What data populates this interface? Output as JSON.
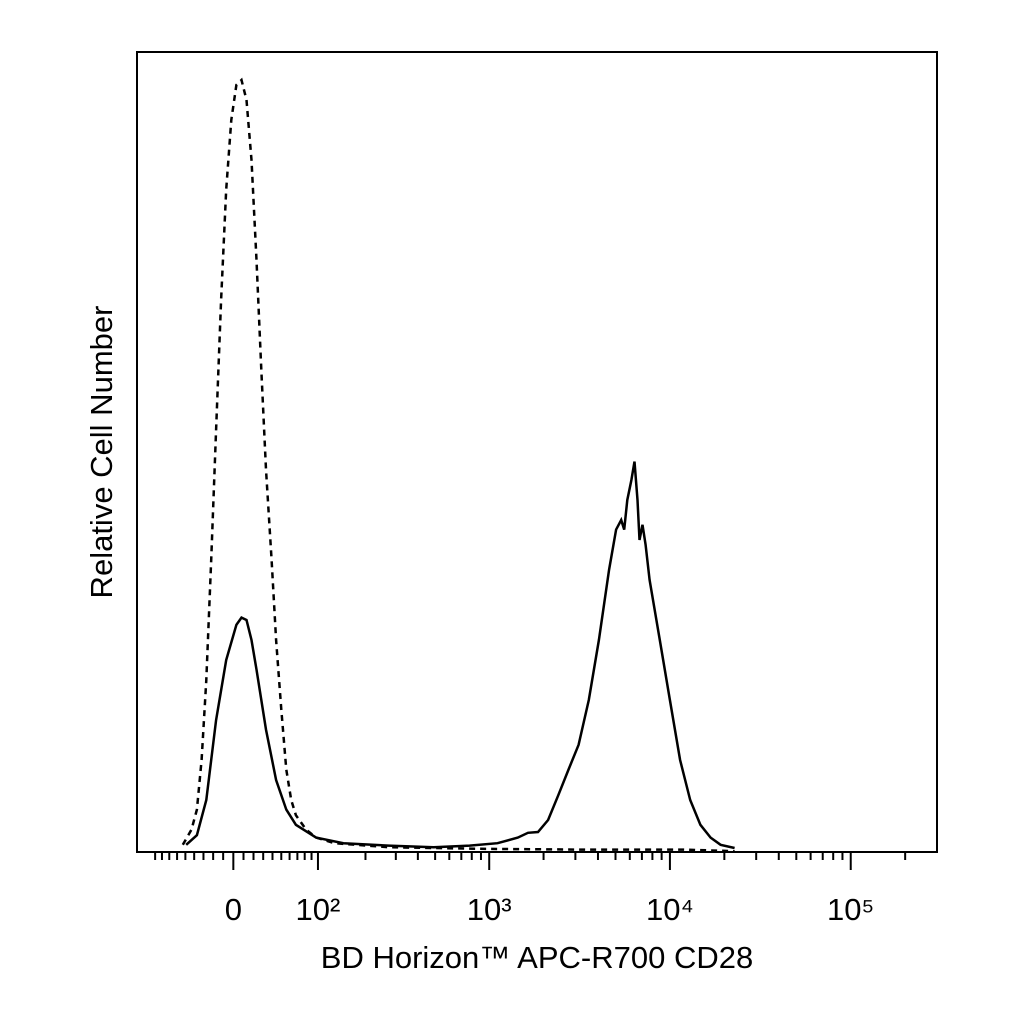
{
  "chart_data": {
    "type": "line",
    "x_label": "BD Horizon™ APC-R700 CD28",
    "y_label": "Relative Cell Number",
    "x_scale": "biexponential",
    "xlim": [
      -120,
      300000
    ],
    "ylim": [
      0,
      100
    ],
    "xticks": [
      {
        "value": 0,
        "label": "0"
      },
      {
        "value": 100,
        "label": "10²"
      },
      {
        "value": 1000,
        "label": "10³"
      },
      {
        "value": 10000,
        "label": "10⁴"
      },
      {
        "value": 100000,
        "label": "10⁵"
      }
    ],
    "xminor_ticks": [
      -90,
      -80,
      -70,
      -60,
      -50,
      -40,
      -30,
      -20,
      -10,
      10,
      20,
      30,
      40,
      50,
      60,
      70,
      80,
      90,
      200,
      300,
      400,
      500,
      600,
      700,
      800,
      900,
      2000,
      3000,
      4000,
      5000,
      6000,
      7000,
      8000,
      9000,
      20000,
      30000,
      40000,
      50000,
      60000,
      70000,
      80000,
      90000,
      200000
    ],
    "series": [
      {
        "color": "#000000",
        "line_style": "dashed",
        "x": [
          -53,
          -43,
          -37,
          -32,
          -27,
          -22,
          -17,
          -12,
          -7,
          -2,
          3,
          8,
          13,
          18,
          23,
          28,
          33,
          39,
          44,
          50,
          56,
          62,
          68,
          82,
          97,
          129,
          272,
          874,
          3126,
          11980,
          22800
        ],
        "values": [
          0.9,
          2.8,
          5.3,
          11.5,
          21.5,
          36.5,
          52.8,
          69,
          82.8,
          91.5,
          95.9,
          96.5,
          94,
          86.5,
          74,
          60.3,
          47.8,
          36.5,
          26.5,
          17.8,
          10.3,
          6.5,
          4.6,
          2.8,
          1.8,
          1.1,
          0.6,
          0.4,
          0.3,
          0.3,
          0.1
        ]
      },
      {
        "color": "#000000",
        "line_style": "solid",
        "x": [
          -49,
          -37,
          -27,
          -17,
          -7,
          3,
          8,
          13,
          18,
          23,
          33,
          44,
          56,
          68,
          97,
          147,
          272,
          490,
          778,
          1111,
          1440,
          1640,
          1863,
          2120,
          2413,
          2747,
          3126,
          3557,
          4046,
          4607,
          5041,
          5380,
          5590,
          5810,
          6120,
          6368,
          6615,
          6787,
          7053,
          7336,
          7720,
          8790,
          10000,
          11390,
          12950,
          14740,
          16780,
          19080,
          22800
        ],
        "values": [
          0.9,
          2.1,
          6.5,
          16.5,
          24,
          28.4,
          29.3,
          29,
          26.5,
          22.8,
          15.3,
          9,
          5.3,
          3.4,
          1.8,
          1.1,
          0.8,
          0.6,
          0.8,
          1.1,
          1.8,
          2.4,
          2.5,
          4,
          7.1,
          10.3,
          13.4,
          19,
          26.5,
          35.3,
          40.3,
          41.5,
          40.3,
          44,
          46.5,
          48.8,
          44,
          39,
          40.9,
          38.4,
          34,
          26.5,
          19,
          11.5,
          6.5,
          3.4,
          1.8,
          0.9,
          0.5
        ]
      }
    ]
  }
}
